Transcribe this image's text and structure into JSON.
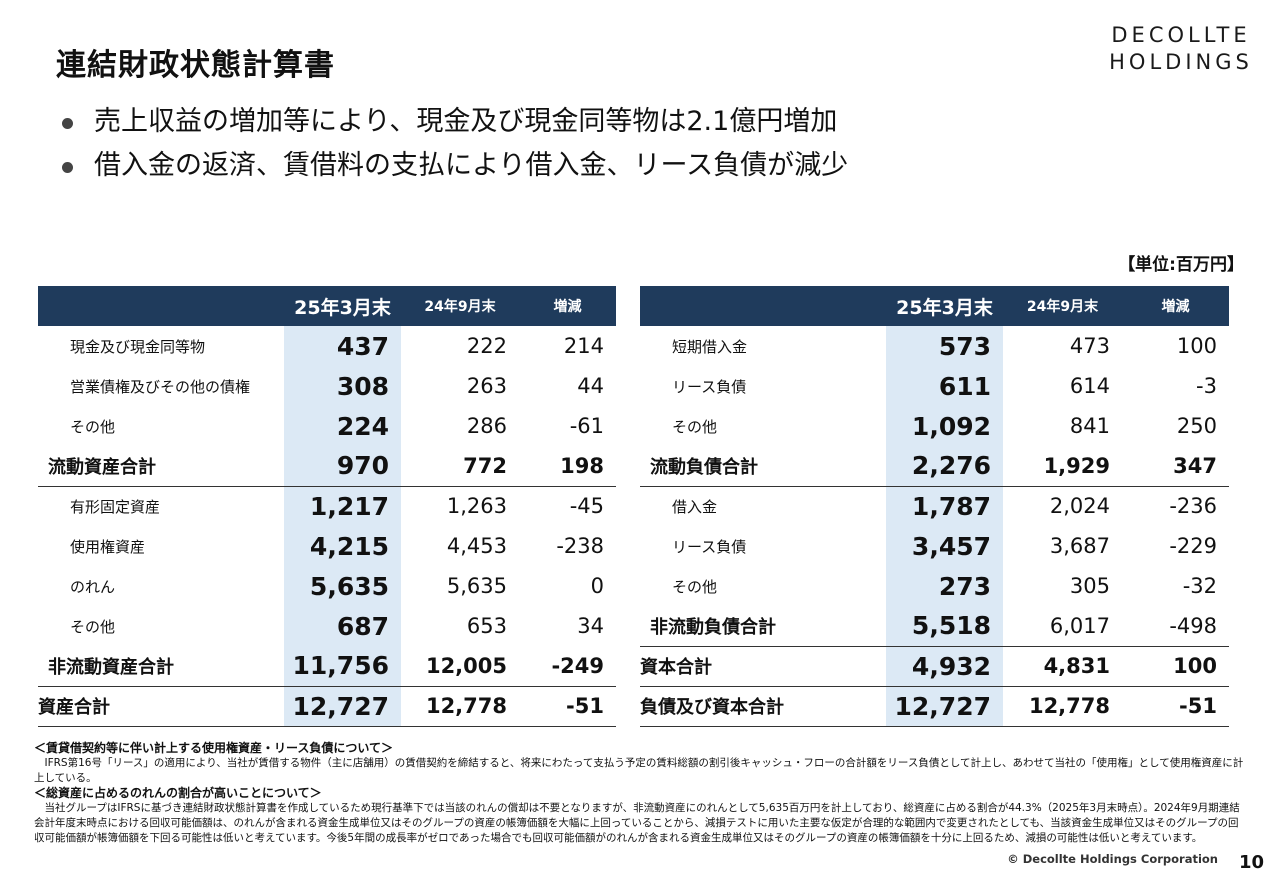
{
  "header": {
    "title": "連結財政状態計算書",
    "logo_line1": "DECOLLTE",
    "logo_line2": "HOLDINGS"
  },
  "bullets": [
    "売上収益の増加等により、現金及び現金同等物は2.1億円増加",
    "借入金の返済、賃借料の支払により借入金、リース負債が減少"
  ],
  "unit_label": "【単位:百万円】",
  "assets": {
    "headers": [
      "",
      "25年3月末",
      "24年9月末",
      "増減"
    ],
    "rows": [
      {
        "label": "現金及び現金同等物",
        "cur": "437",
        "prev": "222",
        "chg": "214"
      },
      {
        "label": "営業債権及びその他の債権",
        "cur": "308",
        "prev": "263",
        "chg": "44"
      },
      {
        "label": "その他",
        "cur": "224",
        "prev": "286",
        "chg": "-61"
      },
      {
        "label": "流動資産合計",
        "cur": "970",
        "prev": "772",
        "chg": "198"
      },
      {
        "label": "有形固定資産",
        "cur": "1,217",
        "prev": "1,263",
        "chg": "-45"
      },
      {
        "label": "使用権資産",
        "cur": "4,215",
        "prev": "4,453",
        "chg": "-238"
      },
      {
        "label": "のれん",
        "cur": "5,635",
        "prev": "5,635",
        "chg": "0"
      },
      {
        "label": "その他",
        "cur": "687",
        "prev": "653",
        "chg": "34"
      },
      {
        "label": "非流動資産合計",
        "cur": "11,756",
        "prev": "12,005",
        "chg": "-249"
      },
      {
        "label": "資産合計",
        "cur": "12,727",
        "prev": "12,778",
        "chg": "-51"
      }
    ]
  },
  "liabilities": {
    "headers": [
      "",
      "25年3月末",
      "24年9月末",
      "増減"
    ],
    "rows": [
      {
        "label": "短期借入金",
        "cur": "573",
        "prev": "473",
        "chg": "100"
      },
      {
        "label": "リース負債",
        "cur": "611",
        "prev": "614",
        "chg": "-3"
      },
      {
        "label": "その他",
        "cur": "1,092",
        "prev": "841",
        "chg": "250"
      },
      {
        "label": "流動負債合計",
        "cur": "2,276",
        "prev": "1,929",
        "chg": "347"
      },
      {
        "label": "借入金",
        "cur": "1,787",
        "prev": "2,024",
        "chg": "-236"
      },
      {
        "label": "リース負債",
        "cur": "3,457",
        "prev": "3,687",
        "chg": "-229"
      },
      {
        "label": "その他",
        "cur": "273",
        "prev": "305",
        "chg": "-32"
      },
      {
        "label": "非流動負債合計",
        "cur": "5,518",
        "prev": "6,017",
        "chg": "-498"
      },
      {
        "label": "資本合計",
        "cur": "4,932",
        "prev": "4,831",
        "chg": "100"
      },
      {
        "label": "負債及び資本合計",
        "cur": "12,727",
        "prev": "12,778",
        "chg": "-51"
      }
    ]
  },
  "notes": {
    "h1": "＜賃貸借契約等に伴い計上する使用権資産・リース負債について＞",
    "p1": "IFRS第16号「リース」の適用により、当社が賃借する物件（主に店舗用）の賃借契約を締結すると、将来にわたって支払う予定の賃料総額の割引後キャッシュ・フローの合計額をリース負債として計上し、あわせて当社の「使用権」として使用権資産に計上している。",
    "h2": "＜総資産に占めるのれんの割合が高いことについて＞",
    "p2": "当社グループはIFRSに基づき連結財政状態計算書を作成しているため現行基準下では当該のれんの償却は不要となりますが、非流動資産にのれんとして5,635百万円を計上しており、総資産に占める割合が44.3%（2025年3月末時点）。2024年9月期連結会計年度末時点における回収可能価額は、のれんが含まれる資金生成単位又はそのグループの資産の帳簿価額を大幅に上回っていることから、減損テストに用いた主要な仮定が合理的な範囲内で変更されたとしても、当該資金生成単位又はそのグループの回収可能価額が帳簿価額を下回る可能性は低いと考えています。今後5年間の成長率がゼロであった場合でも回収可能価額がのれんが含まれる資金生成単位又はそのグループの資産の帳簿価額を十分に上回るため、減損の可能性は低いと考えています。"
  },
  "footer": {
    "copyright": "© Decollte Holdings Corporation",
    "page_number": "10"
  }
}
